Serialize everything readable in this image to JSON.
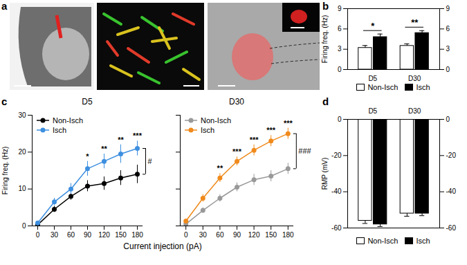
{
  "images": {
    "panel": "a"
  },
  "chart_data": [
    {
      "type": "bar",
      "panel": "b",
      "categories": [
        "D5",
        "D30"
      ],
      "series": [
        {
          "name": "Non-Isch",
          "color": "#ffffff",
          "values": [
            3.2,
            3.5
          ],
          "errors": [
            0.35,
            0.3
          ]
        },
        {
          "name": "Isch",
          "color": "#000000",
          "values": [
            4.8,
            5.4
          ],
          "errors": [
            0.45,
            0.35
          ]
        }
      ],
      "ylabel": "Firing freq. (Hz)",
      "ylim": [
        0,
        9
      ],
      "yticks": [
        0,
        3,
        6,
        9
      ],
      "annotations": [
        {
          "x": "D5",
          "text": "*"
        },
        {
          "x": "D30",
          "text": "**"
        }
      ],
      "legend": "bottom"
    },
    {
      "type": "line",
      "panel": "c",
      "title": "D5",
      "x": [
        0,
        30,
        60,
        90,
        120,
        150,
        180
      ],
      "series": [
        {
          "name": "Non-Isch",
          "color": "#000000",
          "values": [
            0.3,
            4.5,
            8,
            10.8,
            11.5,
            13,
            14
          ],
          "errors": [
            0.3,
            0.8,
            1,
            1.5,
            1.8,
            2,
            2.5
          ]
        },
        {
          "name": "Isch",
          "color": "#3d8fe0",
          "values": [
            0.8,
            6.5,
            10,
            15.5,
            17.5,
            19.5,
            21
          ],
          "errors": [
            0.5,
            1,
            1.5,
            2,
            2,
            2.5,
            2
          ]
        }
      ],
      "xlabel": "Current injection (pA)",
      "ylabel": "Firing freq. (Hz)",
      "xlim": [
        -10,
        190
      ],
      "xticks": [
        0,
        30,
        60,
        90,
        120,
        150,
        180
      ],
      "ylim": [
        0,
        30
      ],
      "yticks": [
        0,
        10,
        20,
        30
      ],
      "marker": "circle",
      "annotations": [
        {
          "x": 90,
          "text": "*"
        },
        {
          "x": 120,
          "text": "**"
        },
        {
          "x": 150,
          "text": "**"
        },
        {
          "x": 180,
          "text": "***"
        },
        {
          "text": "#"
        }
      ],
      "legend": "top-left"
    },
    {
      "type": "line",
      "title": "D30",
      "x": [
        0,
        30,
        60,
        90,
        120,
        150,
        180
      ],
      "series": [
        {
          "name": "Non-Isch",
          "color": "#999999",
          "values": [
            0.5,
            4.2,
            7.5,
            10.5,
            12.5,
            13.5,
            15.5
          ],
          "errors": [
            0.3,
            0.7,
            1,
            1.2,
            1.5,
            1.5,
            1.5
          ]
        },
        {
          "name": "Isch",
          "color": "#f08a1c",
          "values": [
            1.3,
            7.5,
            13,
            17.5,
            20.5,
            23,
            25
          ],
          "errors": [
            0.5,
            1,
            1.2,
            1.2,
            1.5,
            1.5,
            1.5
          ]
        }
      ],
      "xlim": [
        -10,
        190
      ],
      "xticks": [
        0,
        30,
        60,
        90,
        120,
        150,
        180
      ],
      "ylim": [
        0,
        30
      ],
      "yticks": [
        0,
        10,
        20,
        30
      ],
      "marker": "circle",
      "tick_labels": "x",
      "annotations": [
        {
          "x": 60,
          "text": "**"
        },
        {
          "x": 90,
          "text": "***"
        },
        {
          "x": 120,
          "text": "***"
        },
        {
          "x": 150,
          "text": "***"
        },
        {
          "x": 180,
          "text": "***"
        },
        {
          "text": "###"
        }
      ],
      "legend": "top-left"
    },
    {
      "type": "bar",
      "panel": "d",
      "categories": [
        "D5",
        "D30"
      ],
      "series": [
        {
          "name": "Non-Isch",
          "color": "#ffffff",
          "values": [
            -56,
            -52
          ],
          "errors": [
            1.5,
            1.5
          ]
        },
        {
          "name": "Isch",
          "color": "#000000",
          "values": [
            -58,
            -52
          ],
          "errors": [
            1.2,
            1.2
          ]
        }
      ],
      "ylabel": "RMP (mV)",
      "ylim": [
        -60,
        0
      ],
      "yticks": [
        0,
        -20,
        -40,
        -60
      ],
      "legend": "bottom"
    }
  ]
}
